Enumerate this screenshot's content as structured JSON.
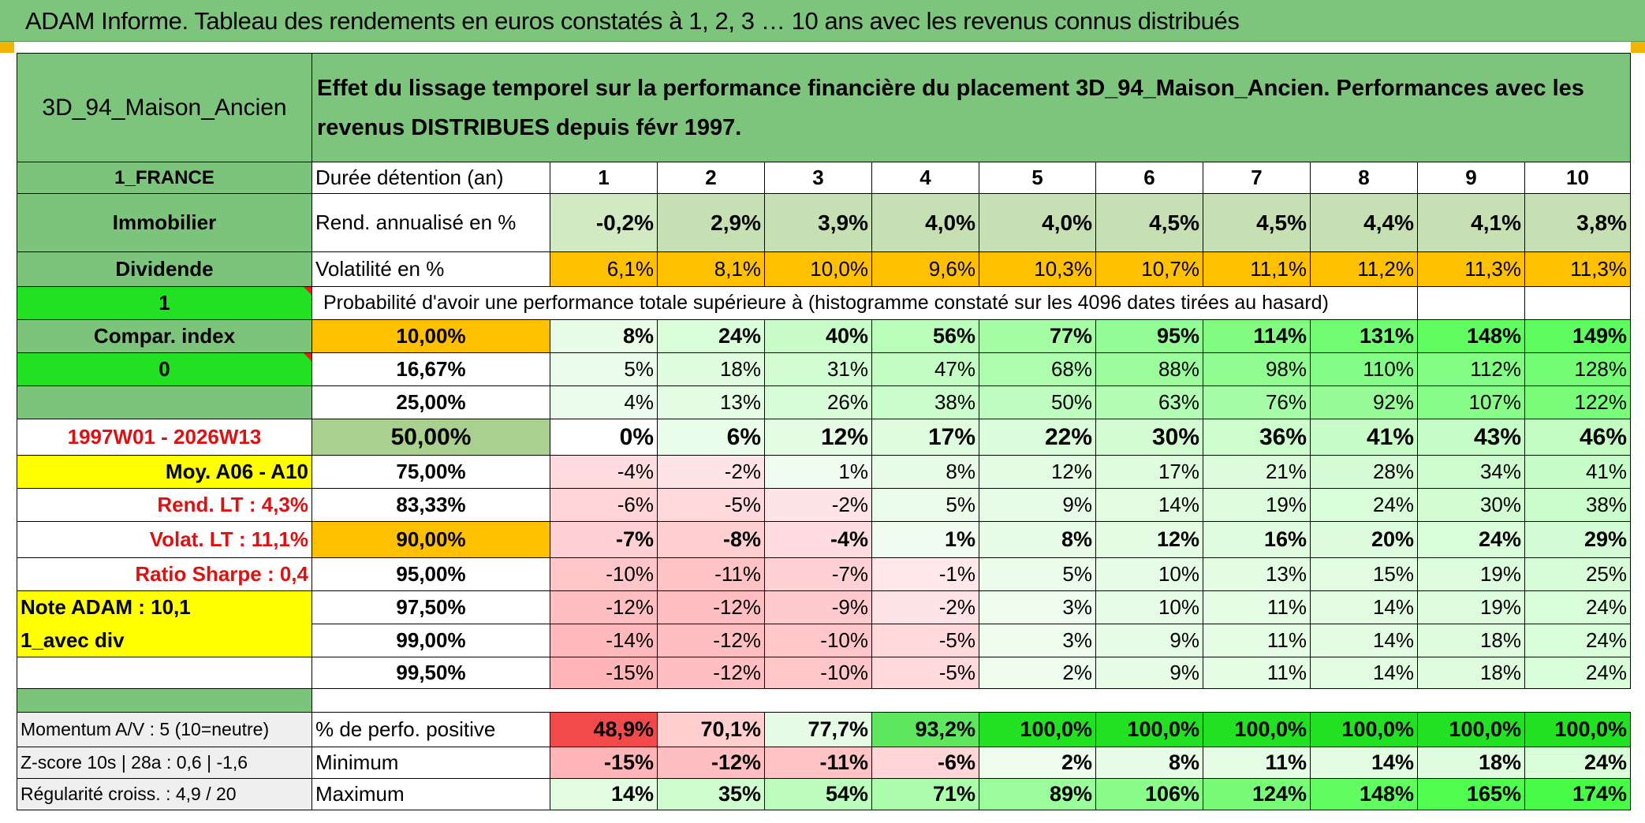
{
  "title": "ADAM Informe. Tableau des rendements en euros constatés à 1, 2, 3 … 10 ans avec les revenus connus distribués",
  "header": {
    "asset_name": "3D_94_Maison_Ancien",
    "description": "Effet du lissage temporel sur la performance financière du placement 3D_94_Maison_Ancien. Performances avec les revenus DISTRIBUES depuis févr 1997."
  },
  "left": {
    "country": "1_FRANCE",
    "category": "Immobilier",
    "income": "Dividende",
    "flag_one": "1",
    "compar_index": "Compar. index",
    "flag_zero": "0",
    "period": "1997W01 - 2026W13",
    "moy": "Moy. A06 - A10",
    "rend_lt": "Rend. LT :   4,3%",
    "volat_lt": "Volat. LT :   11,1%",
    "sharpe": "Ratio Sharpe :    0,4",
    "note_adam": "Note ADAM : 10,1",
    "avec_div": "1_avec div",
    "momentum": "Momentum A/V : 5 (10=neutre)",
    "zscore": "Z-score 10s | 28a : 0,6 | -1,6",
    "regularite": "Régularité croiss. : 4,9 / 20"
  },
  "labels": {
    "duree": "Durée détention (an)",
    "rend": "Rend. annualisé en %",
    "volat": "Volatilité en %",
    "proba": "Probabilité d'avoir une performance totale supérieure à (histogramme constaté sur les 4096 dates tirées au hasard)",
    "positive": "% de perfo. positive",
    "minimum": "Minimum",
    "maximum": "Maximum"
  },
  "years": [
    "1",
    "2",
    "3",
    "4",
    "5",
    "6",
    "7",
    "8",
    "9",
    "10"
  ],
  "rend": [
    "-0,2%",
    "2,9%",
    "3,9%",
    "4,0%",
    "4,0%",
    "4,5%",
    "4,5%",
    "4,4%",
    "4,1%",
    "3,8%"
  ],
  "volat": [
    "6,1%",
    "8,1%",
    "10,0%",
    "9,6%",
    "10,3%",
    "10,7%",
    "11,1%",
    "11,2%",
    "11,3%",
    "11,3%"
  ],
  "percentiles": [
    {
      "level": "10,00%",
      "values": [
        "8%",
        "24%",
        "40%",
        "56%",
        "77%",
        "95%",
        "114%",
        "131%",
        "148%",
        "149%"
      ]
    },
    {
      "level": "16,67%",
      "values": [
        "5%",
        "18%",
        "31%",
        "47%",
        "68%",
        "88%",
        "98%",
        "110%",
        "112%",
        "128%"
      ]
    },
    {
      "level": "25,00%",
      "values": [
        "4%",
        "13%",
        "26%",
        "38%",
        "50%",
        "63%",
        "76%",
        "92%",
        "107%",
        "122%"
      ]
    },
    {
      "level": "50,00%",
      "values": [
        "0%",
        "6%",
        "12%",
        "17%",
        "22%",
        "30%",
        "36%",
        "41%",
        "43%",
        "46%"
      ]
    },
    {
      "level": "75,00%",
      "values": [
        "-4%",
        "-2%",
        "1%",
        "8%",
        "12%",
        "17%",
        "21%",
        "28%",
        "34%",
        "41%"
      ]
    },
    {
      "level": "83,33%",
      "values": [
        "-6%",
        "-5%",
        "-2%",
        "5%",
        "9%",
        "14%",
        "19%",
        "24%",
        "30%",
        "38%"
      ]
    },
    {
      "level": "90,00%",
      "values": [
        "-7%",
        "-8%",
        "-4%",
        "1%",
        "8%",
        "12%",
        "16%",
        "20%",
        "24%",
        "29%"
      ]
    },
    {
      "level": "95,00%",
      "values": [
        "-10%",
        "-11%",
        "-7%",
        "-1%",
        "5%",
        "10%",
        "13%",
        "15%",
        "19%",
        "25%"
      ]
    },
    {
      "level": "97,50%",
      "values": [
        "-12%",
        "-12%",
        "-9%",
        "-2%",
        "3%",
        "10%",
        "11%",
        "14%",
        "19%",
        "24%"
      ]
    },
    {
      "level": "99,00%",
      "values": [
        "-14%",
        "-12%",
        "-10%",
        "-5%",
        "3%",
        "9%",
        "11%",
        "14%",
        "18%",
        "24%"
      ]
    },
    {
      "level": "99,50%",
      "values": [
        "-15%",
        "-12%",
        "-10%",
        "-5%",
        "2%",
        "9%",
        "11%",
        "14%",
        "18%",
        "24%"
      ]
    }
  ],
  "positive": [
    "48,9%",
    "70,1%",
    "77,7%",
    "93,2%",
    "100,0%",
    "100,0%",
    "100,0%",
    "100,0%",
    "100,0%",
    "100,0%"
  ],
  "minimum": [
    "-15%",
    "-12%",
    "-11%",
    "-6%",
    "2%",
    "8%",
    "11%",
    "14%",
    "18%",
    "24%"
  ],
  "maximum": [
    "14%",
    "35%",
    "54%",
    "71%",
    "89%",
    "106%",
    "124%",
    "148%",
    "165%",
    "174%"
  ],
  "colors": {
    "title_green": "#7dc57d",
    "header_green": "#7dc57d",
    "row_green": "#7cc47c",
    "bright_green": "#22e022",
    "yellow": "#ffff00",
    "orange": "#ffc000",
    "rend_bg": "#c6e0b4",
    "median_bg": "#a9d08e",
    "red_text": "#e01010"
  }
}
